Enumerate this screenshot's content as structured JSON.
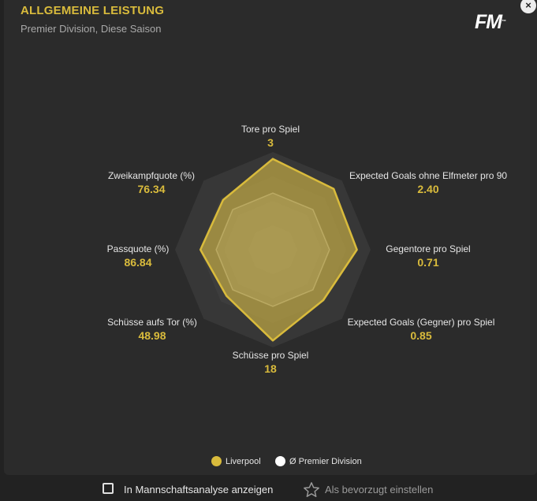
{
  "header": {
    "title": "ALLGEMEINE LEISTUNG",
    "subtitle": "Premier Division, Diese Saison",
    "logo": "FM",
    "close_icon": "×"
  },
  "colors": {
    "team": "#d9bb3c",
    "league": "#ffffff",
    "background": "#2b2b2b"
  },
  "chart_data": {
    "type": "radar",
    "axes": [
      {
        "label": "Tore pro Spiel",
        "value": "3",
        "team_norm": 0.93,
        "league_norm": 0.58
      },
      {
        "label": "Expected Goals ohne Elfmeter pro 90",
        "value": "2.40",
        "team_norm": 0.88,
        "league_norm": 0.58
      },
      {
        "label": "Gegentore pro Spiel",
        "value": "0.71",
        "team_norm": 0.86,
        "league_norm": 0.58
      },
      {
        "label": "Expected Goals (Gegner) pro Spiel",
        "value": "0.85",
        "team_norm": 0.73,
        "league_norm": 0.58
      },
      {
        "label": "Schüsse pro Spiel",
        "value": "18",
        "team_norm": 0.93,
        "league_norm": 0.58
      },
      {
        "label": "Schüsse aufs Tor (%)",
        "value": "48.98",
        "team_norm": 0.67,
        "league_norm": 0.58
      },
      {
        "label": "Passquote (%)",
        "value": "86.84",
        "team_norm": 0.74,
        "league_norm": 0.58
      },
      {
        "label": "Zweikampfquote (%)",
        "value": "76.34",
        "team_norm": 0.72,
        "league_norm": 0.58
      }
    ],
    "legend": [
      {
        "name": "Liverpool",
        "color": "#d9bb3c"
      },
      {
        "name": "Ø Premier Division",
        "color": "#ffffff"
      }
    ]
  },
  "footer": {
    "checkbox_label": "In Mannschaftsanalyse anzeigen",
    "favorite_label": "Als bevorzugt einstellen"
  }
}
